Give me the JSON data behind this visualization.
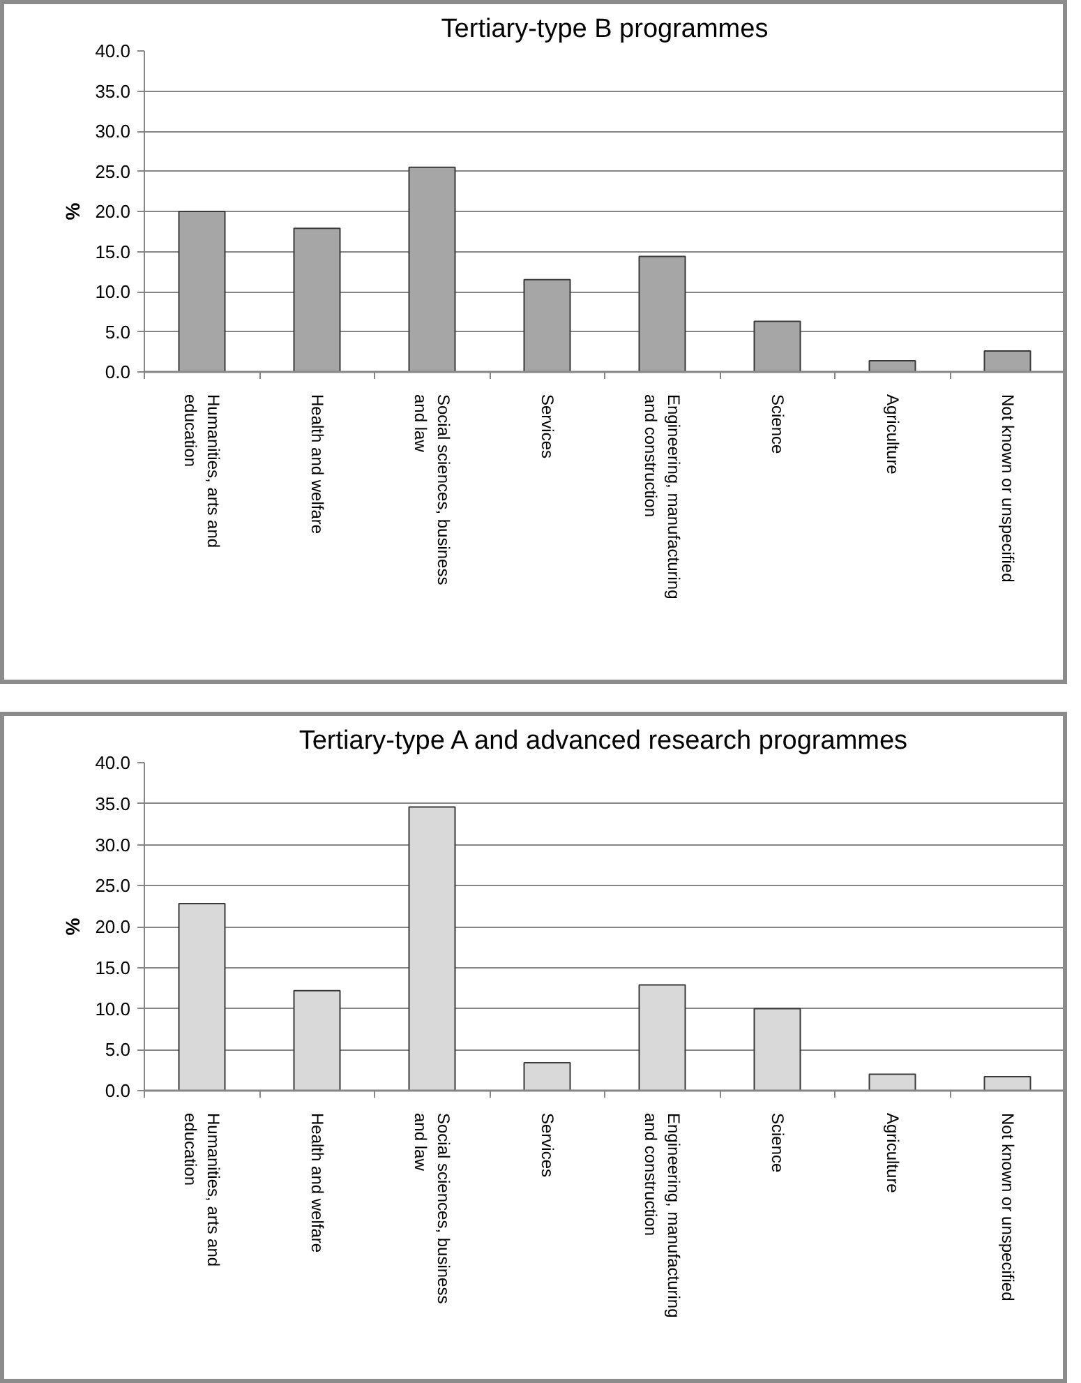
{
  "chart_data": [
    {
      "type": "bar",
      "title": "Tertiary-type B programmes",
      "ylabel": "%",
      "categories": [
        "Humanities, arts and education",
        "Health and welfare",
        "Social sciences, business and law",
        "Services",
        "Engineering, manufacturing and construction",
        "Science",
        "Agriculture",
        "Not known or unspecified"
      ],
      "values": [
        20.0,
        17.9,
        25.5,
        11.5,
        14.4,
        6.3,
        1.4,
        2.6
      ],
      "color": "#a6a6a6",
      "ylim": [
        0,
        40
      ],
      "yticks": [
        {
          "value": 0,
          "label": "0.0"
        },
        {
          "value": 5,
          "label": "5.0"
        },
        {
          "value": 10,
          "label": "10.0"
        },
        {
          "value": 15,
          "label": "15.0"
        },
        {
          "value": 20,
          "label": "20.0"
        },
        {
          "value": 25,
          "label": "25.0"
        },
        {
          "value": 30,
          "label": "30.0"
        },
        {
          "value": 35,
          "label": "35.0"
        },
        {
          "value": 40,
          "label": "40.0"
        }
      ],
      "grid": "y"
    },
    {
      "type": "bar",
      "title": "Tertiary-type A and advanced research programmes",
      "ylabel": "%",
      "categories": [
        "Humanities, arts and education",
        "Health and welfare",
        "Social sciences, business and law",
        "Services",
        "Engineering, manufacturing and construction",
        "Science",
        "Agriculture",
        "Not known or unspecified"
      ],
      "values": [
        22.8,
        12.2,
        34.6,
        3.4,
        12.9,
        10.0,
        2.0,
        1.7
      ],
      "color": "#d9d9d9",
      "ylim": [
        0,
        40
      ],
      "yticks": [
        {
          "value": 0,
          "label": "0.0"
        },
        {
          "value": 5,
          "label": "5.0"
        },
        {
          "value": 10,
          "label": "10.0"
        },
        {
          "value": 15,
          "label": "15.0"
        },
        {
          "value": 20,
          "label": "20.0"
        },
        {
          "value": 25,
          "label": "25.0"
        },
        {
          "value": 30,
          "label": "30.0"
        },
        {
          "value": 35,
          "label": "35.0"
        },
        {
          "value": 40,
          "label": "40.0"
        }
      ],
      "grid": "y"
    }
  ]
}
